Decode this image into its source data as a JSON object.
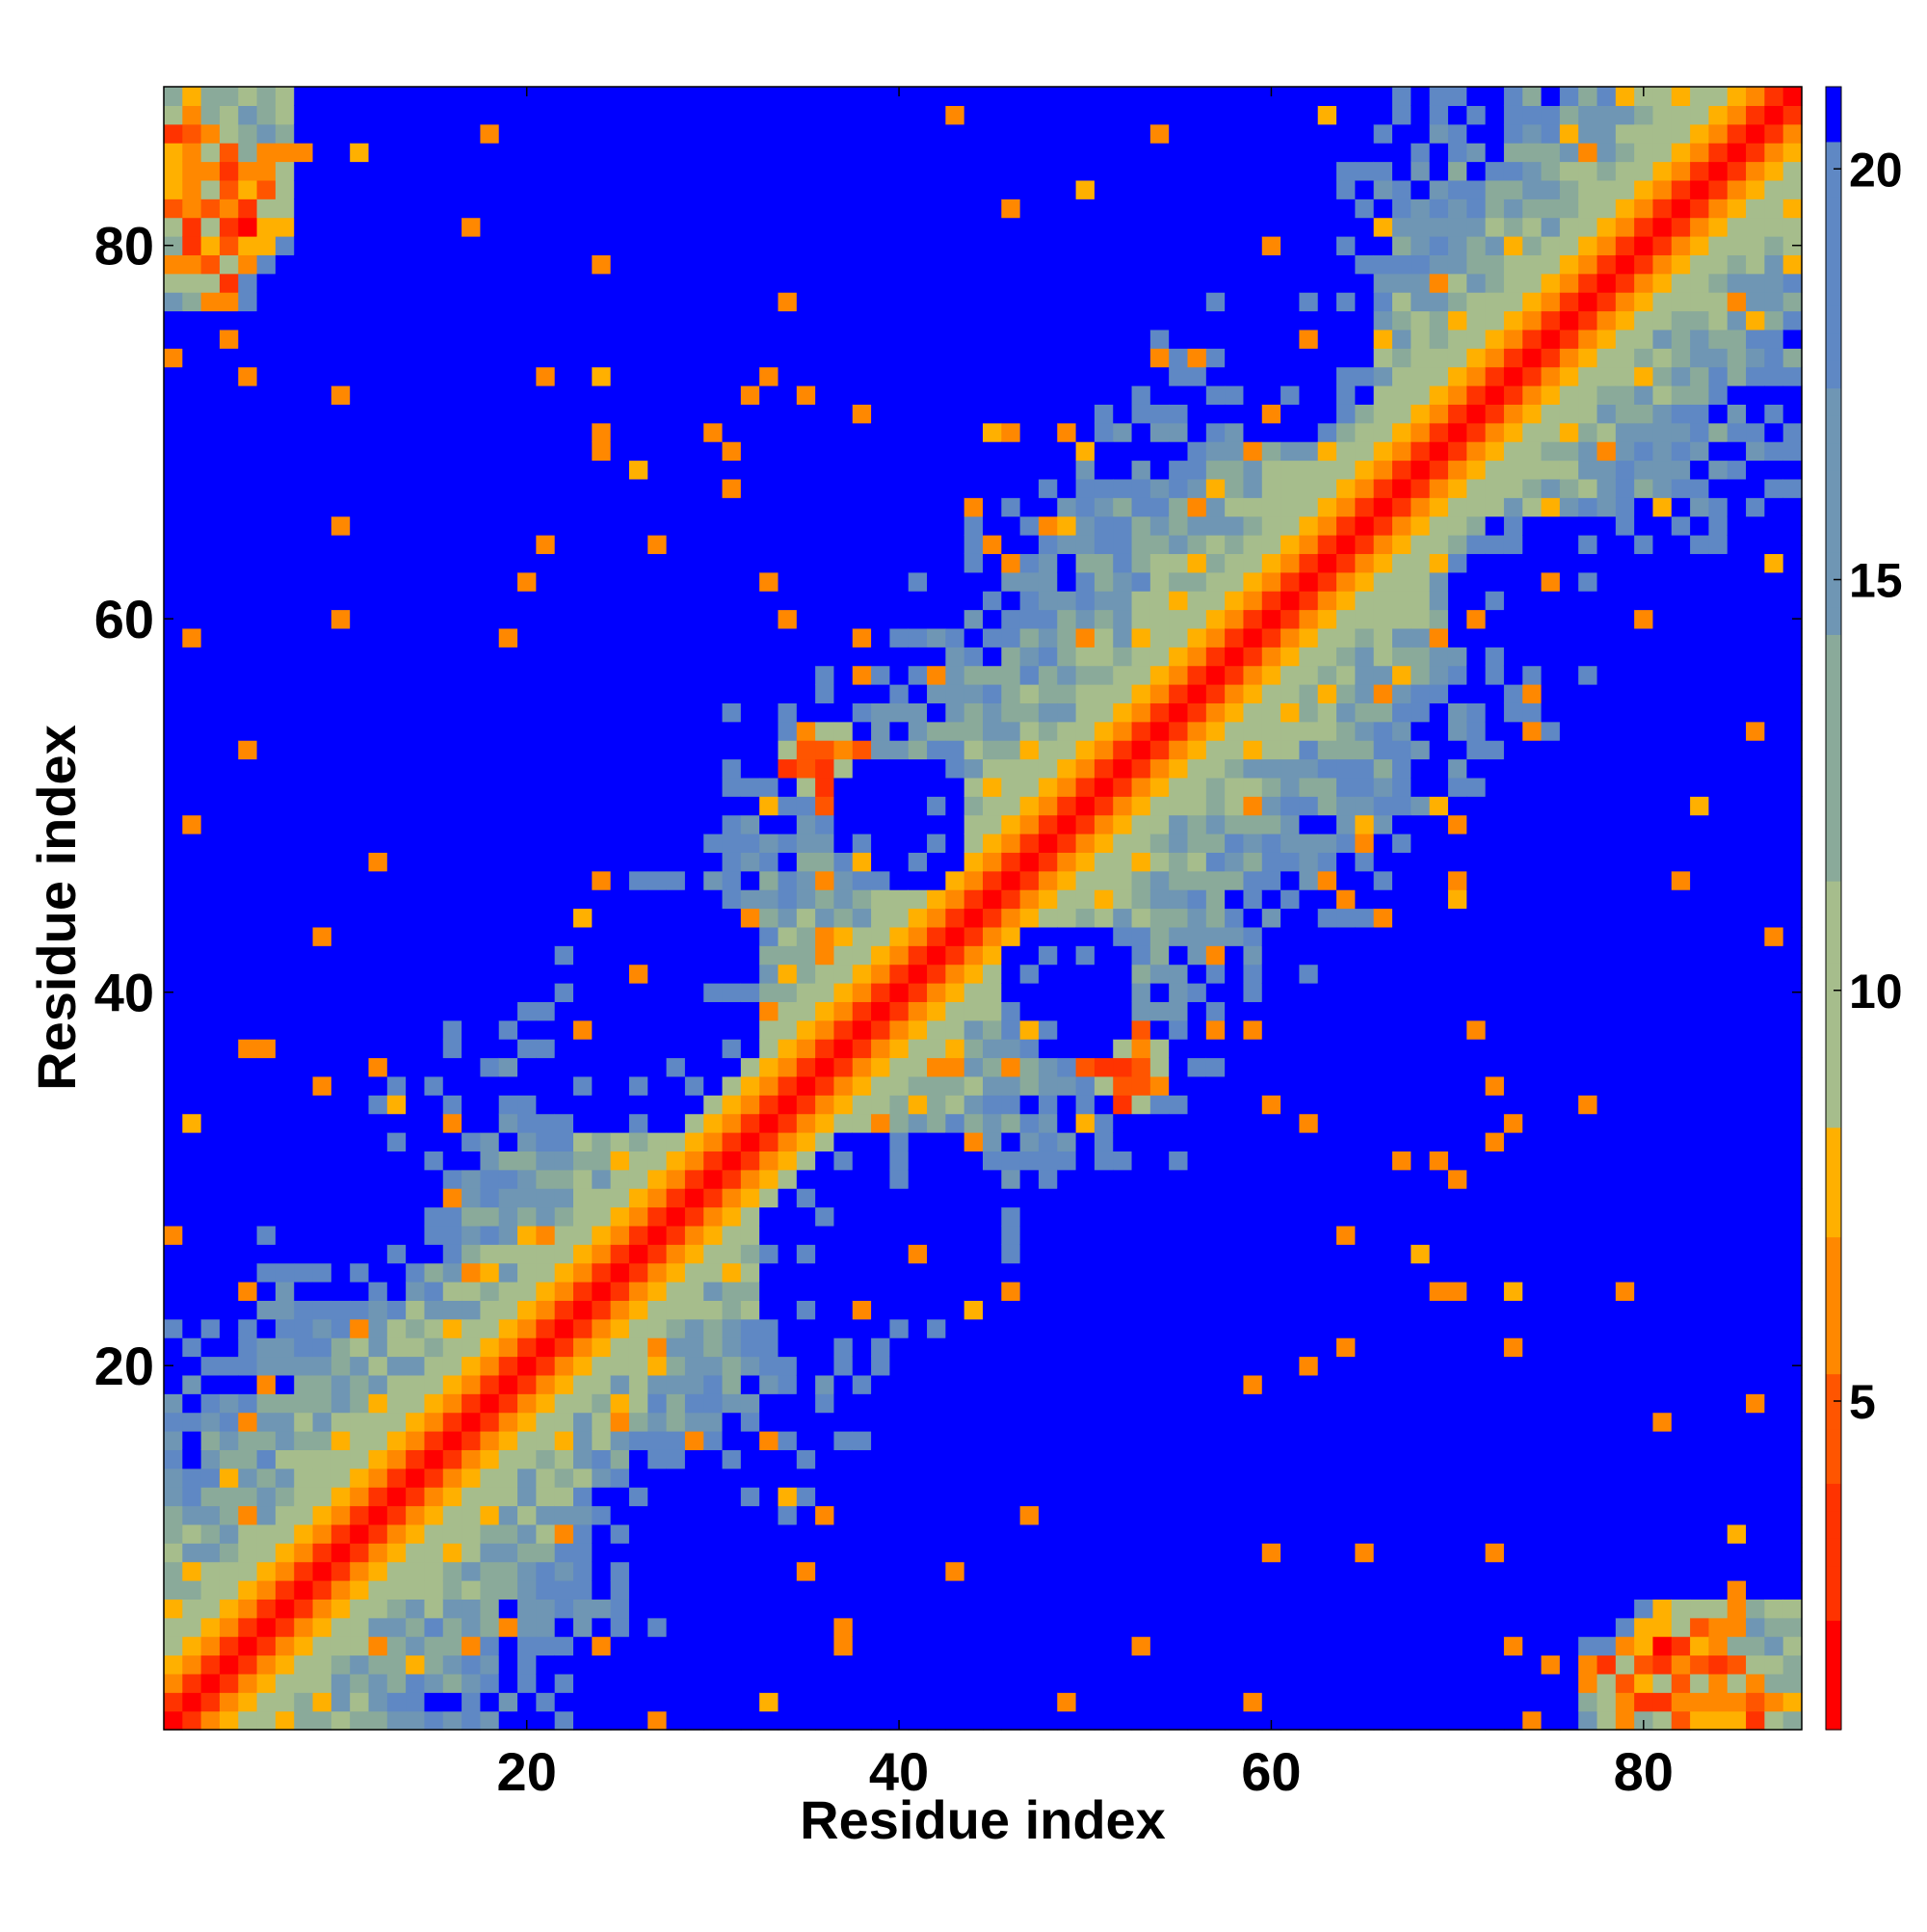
{
  "chart_data": {
    "type": "heatmap",
    "title": "",
    "xlabel": "Residue index",
    "ylabel": "Residue index",
    "x_range": [
      1,
      88
    ],
    "y_range": [
      1,
      88
    ],
    "n_residues": 88,
    "x_ticks": [
      20,
      40,
      60,
      80
    ],
    "y_ticks": [
      20,
      40,
      60,
      80
    ],
    "colorbar": {
      "ticks": [
        5,
        10,
        15,
        20
      ],
      "range": [
        1,
        21
      ],
      "colors": {
        "red": "#ff0000",
        "red_orange": "#ff3300",
        "orange_red": "#ff5500",
        "orange": "#ff8800",
        "amber": "#ffb000",
        "sage": "#a6bd8c",
        "sage_blue": "#8aaa9a",
        "steel": "#6f96b4",
        "steel_blue": "#5f88c4",
        "blue": "#0000ff"
      }
    },
    "symmetric": true,
    "description_of_features": [
      "main diagonal distance ~0 (red)",
      "anti-diagonal hairpin contacts around residue 40-50 (orange)",
      "N/C terminal contacts near residues 1-5 vs 80-88 (orange)",
      "large distances (>20) blue regions"
    ]
  }
}
